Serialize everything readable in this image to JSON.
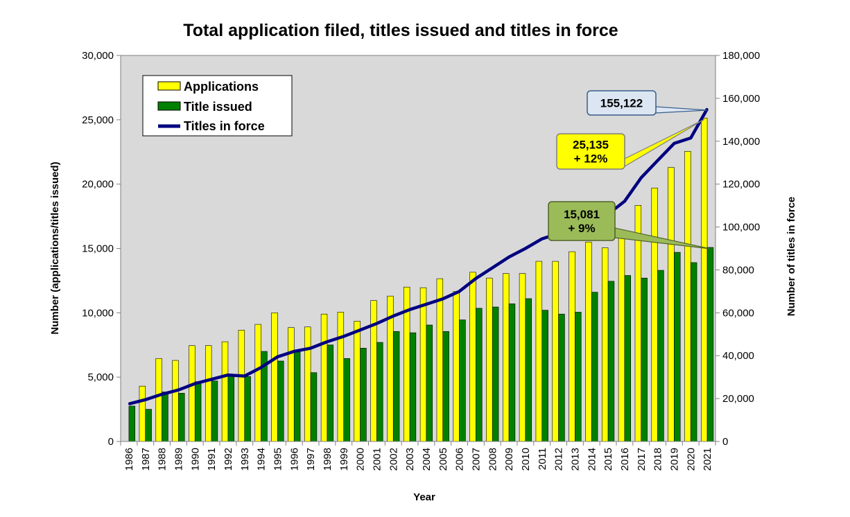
{
  "chart_data": {
    "type": "bar",
    "title": "Total application filed, titles issued and titles in force",
    "xlabel": "Year",
    "ylabel": "Number (applications/titles issued)",
    "y2label": "Number of titles in force",
    "ylim": [
      0,
      30000
    ],
    "y2lim": [
      0,
      180000
    ],
    "yticks": [
      "0",
      "5,000",
      "10,000",
      "15,000",
      "20,000",
      "25,000",
      "30,000"
    ],
    "y2ticks": [
      "0",
      "20,000",
      "40,000",
      "60,000",
      "80,000",
      "100,000",
      "120,000",
      "140,000",
      "160,000",
      "180,000"
    ],
    "grid": false,
    "legend_position": "top-left",
    "plot_background": "#d9d9d9",
    "categories": [
      "1986",
      "1987",
      "1988",
      "1989",
      "1990",
      "1991",
      "1992",
      "1993",
      "1994",
      "1995",
      "1996",
      "1997",
      "1998",
      "1999",
      "2000",
      "2001",
      "2002",
      "2003",
      "2004",
      "2005",
      "2006",
      "2007",
      "2008",
      "2009",
      "2010",
      "2011",
      "2012",
      "2013",
      "2014",
      "2015",
      "2016",
      "2017",
      "2018",
      "2019",
      "2020",
      "2021"
    ],
    "series": [
      {
        "name": "Applications",
        "type": "bar",
        "axis": "left",
        "color": "#ffff00",
        "values": [
          0,
          4300,
          6450,
          6300,
          7450,
          7450,
          7750,
          8650,
          9100,
          10000,
          8850,
          8900,
          9900,
          10050,
          9350,
          10950,
          11300,
          12000,
          11950,
          12650,
          11650,
          13150,
          12700,
          13050,
          13050,
          14000,
          14000,
          14750,
          15500,
          15050,
          15800,
          18350,
          19700,
          21300,
          22550,
          25135
        ]
      },
      {
        "name": "Title issued",
        "type": "bar",
        "axis": "left",
        "color": "#008000",
        "values": [
          2750,
          2500,
          3850,
          3750,
          4650,
          4700,
          5100,
          5050,
          7000,
          6250,
          6950,
          5350,
          7500,
          6450,
          7250,
          7700,
          8550,
          8450,
          9050,
          8550,
          9450,
          10350,
          10450,
          10700,
          11100,
          10200,
          9900,
          10050,
          11600,
          12450,
          12900,
          12700,
          13300,
          14700,
          13900,
          15081
        ]
      },
      {
        "name": "Titles in force",
        "type": "line",
        "axis": "right",
        "color": "#000080",
        "values": [
          17500,
          19500,
          22000,
          24000,
          27000,
          29000,
          31000,
          30500,
          34500,
          39500,
          42000,
          43500,
          46500,
          49000,
          52000,
          55000,
          58500,
          61500,
          64000,
          66500,
          70000,
          76000,
          81000,
          86000,
          90000,
          94500,
          97000,
          100000,
          103000,
          106000,
          112000,
          123000,
          131000,
          139000,
          141500,
          155122
        ]
      }
    ],
    "annotations": [
      {
        "id": "a1",
        "line1": "155,122",
        "line2": "",
        "fill": "#dce6f2",
        "border": "#385d8a",
        "text_color": "#1f3864",
        "target_series": 2,
        "target_index": 35
      },
      {
        "id": "a2",
        "line1": "25,135",
        "line2": "+ 12%",
        "fill": "#ffff00",
        "border": "#7f7f7f",
        "text_color": "#000000",
        "target_series": 0,
        "target_index": 35
      },
      {
        "id": "a3",
        "line1": "15,081",
        "line2": "+ 9%",
        "fill": "#9bbb59",
        "border": "#4f6228",
        "text_color": "#000000",
        "target_series": 1,
        "target_index": 35
      }
    ]
  }
}
